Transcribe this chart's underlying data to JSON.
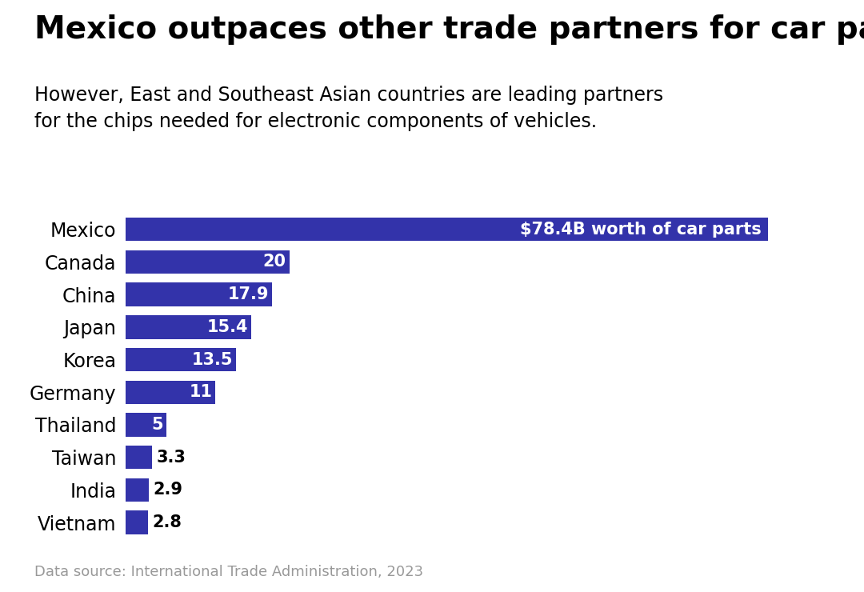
{
  "title": "Mexico outpaces other trade partners for car parts",
  "subtitle": "However, East and Southeast Asian countries are leading partners\nfor the chips needed for electronic components of vehicles.",
  "footnote": "Data source: International Trade Administration, 2023",
  "categories": [
    "Mexico",
    "Canada",
    "China",
    "Japan",
    "Korea",
    "Germany",
    "Thailand",
    "Taiwan",
    "India",
    "Vietnam"
  ],
  "values": [
    78.4,
    20,
    17.9,
    15.4,
    13.5,
    11,
    5,
    3.3,
    2.9,
    2.8
  ],
  "bar_color": "#3333AA",
  "label_mexico": "$78.4B worth of car parts",
  "labels": [
    "",
    "20",
    "17.9",
    "15.4",
    "13.5",
    "11",
    "5",
    "3.3",
    "2.9",
    "2.8"
  ],
  "inside_threshold": 5,
  "title_fontsize": 28,
  "subtitle_fontsize": 17,
  "label_fontsize": 15,
  "tick_fontsize": 17,
  "footnote_fontsize": 13,
  "background_color": "#ffffff",
  "text_color": "#000000",
  "footnote_color": "#999999",
  "xlim_max": 88,
  "bar_height": 0.72
}
